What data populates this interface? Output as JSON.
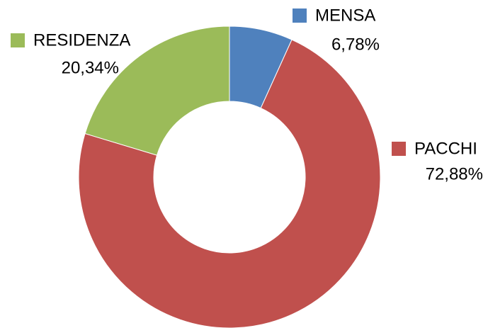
{
  "chart_data": {
    "type": "pie",
    "categories": [
      "MENSA",
      "PACCHI",
      "RESIDENZA"
    ],
    "values": [
      6.78,
      72.88,
      20.34
    ],
    "value_labels": [
      "6,78%",
      "72,88%",
      "20,34%"
    ],
    "colors": [
      "#4f81bd",
      "#c0504d",
      "#9bbb59"
    ]
  }
}
